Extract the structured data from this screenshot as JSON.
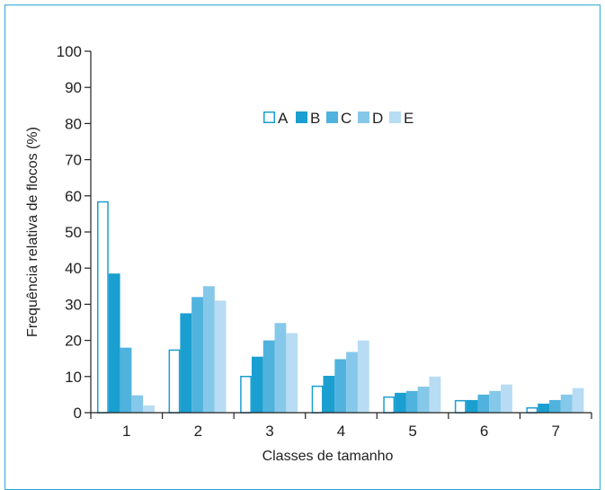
{
  "chart_data": {
    "type": "bar",
    "title": "",
    "xlabel": "Classes de tamanho",
    "ylabel": "Frequência relativa de flocos (%)",
    "ylim": [
      0,
      100
    ],
    "yticks": [
      0,
      10,
      20,
      30,
      40,
      50,
      60,
      70,
      80,
      90,
      100
    ],
    "categories": [
      "1",
      "2",
      "3",
      "4",
      "5",
      "6",
      "7"
    ],
    "legend_position": "top-center",
    "grid": false,
    "series": [
      {
        "name": "A",
        "color": "#ffffff",
        "stroke": "#1a9fd0",
        "values": [
          58.5,
          17.5,
          10.2,
          7.5,
          4.5,
          3.5,
          1.5
        ]
      },
      {
        "name": "B",
        "color": "#1a9fd0",
        "values": [
          38.5,
          27.5,
          15.5,
          10.2,
          5.5,
          3.5,
          2.5
        ]
      },
      {
        "name": "C",
        "color": "#4fb3de",
        "values": [
          18.0,
          32.0,
          20.0,
          14.8,
          6.0,
          5.0,
          3.5
        ]
      },
      {
        "name": "D",
        "color": "#86c8ea",
        "values": [
          4.8,
          35.0,
          24.8,
          16.8,
          7.2,
          6.0,
          5.0
        ]
      },
      {
        "name": "E",
        "color": "#b8dcf3",
        "values": [
          2.0,
          31.0,
          22.0,
          20.0,
          10.0,
          7.8,
          6.8
        ]
      }
    ]
  }
}
